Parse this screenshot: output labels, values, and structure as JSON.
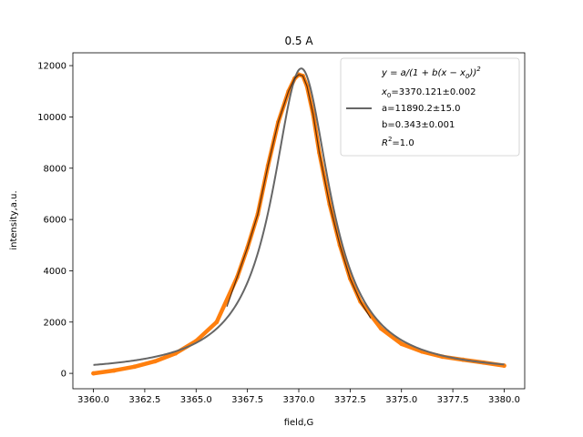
{
  "chart_data": {
    "type": "line",
    "title": "0.5 A",
    "xlabel": "field,G",
    "ylabel": "intensity,a.u.",
    "xlim": [
      3359.0,
      3381.0
    ],
    "ylim": [
      -600,
      12500
    ],
    "xticks": [
      3360.0,
      3362.5,
      3365.0,
      3367.5,
      3370.0,
      3372.5,
      3375.0,
      3377.5,
      3380.0
    ],
    "xtick_labels": [
      "3360.0",
      "3362.5",
      "3365.0",
      "3367.5",
      "3370.0",
      "3372.5",
      "3375.0",
      "3377.5",
      "3380.0"
    ],
    "yticks": [
      0,
      2000,
      4000,
      6000,
      8000,
      10000,
      12000
    ],
    "ytick_labels": [
      "0",
      "2000",
      "4000",
      "6000",
      "8000",
      "10000",
      "12000"
    ],
    "grid": false,
    "legend_position": "top-right",
    "legend": {
      "line1": "y = a/(1 + b(x − x",
      "line1_sub": "0",
      "line1_end": "))",
      "line1_sup": "2",
      "line2_a": "x",
      "line2_sub": "0",
      "line2_b": "=3370.121±0.002",
      "line3": "a=11890.2±15.0",
      "line4": "b=0.343±0.001",
      "line5_a": "R",
      "line5_sup": "2",
      "line5_b": "=1.0"
    },
    "series": [
      {
        "kind": "data",
        "color": "#ff7f0e",
        "x": [
          3360.0,
          3361.0,
          3362.0,
          3363.0,
          3364.0,
          3365.0,
          3366.0,
          3367.0,
          3367.5,
          3368.0,
          3368.5,
          3369.0,
          3369.5,
          3369.8,
          3370.0,
          3370.2,
          3370.4,
          3370.7,
          3371.0,
          3371.5,
          3372.0,
          3372.5,
          3373.0,
          3374.0,
          3375.0,
          3376.0,
          3377.0,
          3378.0,
          3379.0,
          3380.0
        ],
        "y": [
          0,
          110,
          260,
          470,
          780,
          1260,
          2000,
          3750,
          4900,
          6200,
          8100,
          9800,
          11000,
          11500,
          11650,
          11600,
          11200,
          10100,
          8600,
          6600,
          5000,
          3700,
          2800,
          1750,
          1150,
          850,
          650,
          530,
          420,
          300
        ]
      },
      {
        "kind": "fit",
        "color": "#666666",
        "x0": 3370.121,
        "a": 11890.2,
        "b": 0.343,
        "x_range": [
          3360.0,
          3380.0
        ]
      },
      {
        "kind": "data-overlay",
        "color": "#3b1d0a",
        "x": [
          3366.5,
          3367.0,
          3367.5,
          3368.0,
          3368.5,
          3369.0,
          3369.5,
          3369.8,
          3370.0,
          3370.2,
          3370.4,
          3370.7,
          3371.0,
          3371.5,
          3372.0,
          3372.5,
          3373.0,
          3373.5
        ],
        "y": [
          2600,
          3750,
          4900,
          6200,
          8100,
          9800,
          11000,
          11500,
          11650,
          11600,
          11200,
          10100,
          8600,
          6600,
          5000,
          3700,
          2800,
          2150
        ]
      }
    ]
  }
}
